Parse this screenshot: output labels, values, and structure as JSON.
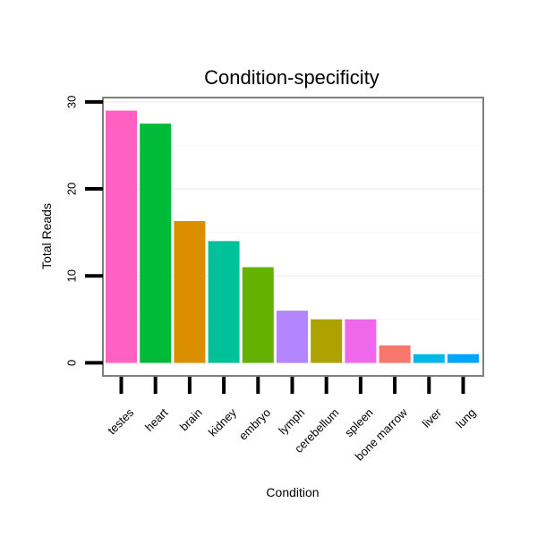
{
  "chart_data": {
    "type": "bar",
    "title": "Condition-specificity",
    "xlabel": "Condition",
    "ylabel": "Total Reads",
    "ylim": [
      -1.5,
      30.5
    ],
    "yticks": [
      0,
      10,
      20,
      30
    ],
    "grid": true,
    "legend": "none",
    "categories": [
      "testes",
      "heart",
      "brain",
      "kidney",
      "embryo",
      "lymph",
      "cerebellum",
      "spleen",
      "bone marrow",
      "liver",
      "lung"
    ],
    "values": [
      29,
      27.5,
      16.3,
      14,
      11,
      6,
      5,
      5,
      2,
      1,
      1
    ],
    "colors": [
      "#FF61C3",
      "#00BA38",
      "#DB8E00",
      "#00C19A",
      "#64B200",
      "#B385FF",
      "#AEA200",
      "#EF67EB",
      "#F8766D",
      "#00B6EB",
      "#00A5FF"
    ]
  }
}
